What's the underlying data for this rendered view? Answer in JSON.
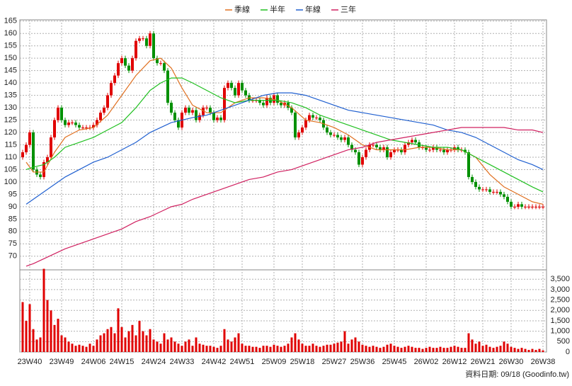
{
  "chart_data": {
    "type": "candlestick",
    "categories": [
      null,
      null,
      "23W40",
      null,
      null,
      null,
      null,
      null,
      null,
      null,
      null,
      "23W49",
      null,
      null,
      null,
      null,
      null,
      null,
      null,
      null,
      "24W06",
      null,
      null,
      null,
      null,
      null,
      null,
      null,
      "24W15",
      null,
      null,
      null,
      null,
      null,
      null,
      null,
      null,
      "24W24",
      null,
      null,
      null,
      null,
      null,
      null,
      null,
      "24W33",
      null,
      null,
      null,
      null,
      null,
      null,
      null,
      null,
      "24W42",
      null,
      null,
      null,
      null,
      null,
      null,
      null,
      "24W51",
      null,
      null,
      null,
      null,
      null,
      null,
      null,
      null,
      "25W09",
      null,
      null,
      null,
      null,
      null,
      null,
      null,
      "25W18",
      null,
      null,
      null,
      null,
      null,
      null,
      null,
      null,
      "25W27",
      null,
      null,
      null,
      null,
      null,
      null,
      null,
      "25W36",
      null,
      null,
      null,
      null,
      null,
      null,
      null,
      null,
      "25W45",
      null,
      null,
      null,
      null,
      null,
      null,
      null,
      null,
      "26W02",
      null,
      null,
      null,
      null,
      null,
      null,
      null,
      "26W12",
      null,
      null,
      null,
      null,
      null,
      null,
      null,
      "26W21",
      null,
      null,
      null,
      null,
      null,
      null,
      null,
      "26W30",
      null,
      null,
      null,
      null,
      null,
      null,
      null,
      null,
      "26W38"
    ],
    "open": [
      110,
      112,
      115,
      120,
      105,
      103,
      102,
      108,
      110,
      118,
      125,
      130,
      125,
      123,
      124,
      124,
      123,
      122,
      122,
      122,
      122,
      123,
      125,
      128,
      130,
      135,
      140,
      143,
      148,
      150,
      147,
      145,
      150,
      157,
      158,
      158,
      155,
      160,
      150,
      148,
      148,
      145,
      132,
      128,
      125,
      122,
      128,
      130,
      128,
      129,
      125,
      127,
      130,
      130,
      128,
      125,
      126,
      125,
      138,
      140,
      138,
      135,
      140,
      137,
      135,
      133,
      133,
      133,
      132,
      131,
      134,
      132,
      135,
      132,
      131,
      132,
      130,
      128,
      118,
      120,
      122,
      125,
      127,
      126,
      126,
      125,
      122,
      120,
      119,
      119,
      118,
      117,
      118,
      115,
      113,
      112,
      107,
      110,
      113,
      115,
      115,
      114,
      113,
      114,
      110,
      112,
      113,
      113,
      112,
      115,
      116,
      117,
      116,
      114,
      114,
      113,
      113,
      114,
      113,
      113,
      112,
      113,
      113,
      114,
      113,
      113,
      112,
      102,
      100,
      98,
      97,
      97,
      97,
      96,
      96,
      96,
      95,
      94,
      92,
      90,
      90,
      91,
      90,
      90,
      90,
      90,
      90,
      90
    ],
    "high": [
      113,
      116,
      121,
      121,
      106,
      104,
      109,
      111,
      119,
      126,
      131,
      131,
      126,
      125,
      125,
      125,
      124,
      123,
      123,
      123,
      124,
      126,
      129,
      131,
      136,
      141,
      144,
      149,
      151,
      151,
      148,
      151,
      158,
      159,
      159,
      159,
      161,
      161,
      151,
      149,
      149,
      146,
      133,
      129,
      126,
      129,
      131,
      131,
      130,
      130,
      128,
      131,
      131,
      131,
      129,
      127,
      127,
      139,
      141,
      141,
      139,
      141,
      141,
      138,
      136,
      134,
      134,
      134,
      133,
      135,
      135,
      136,
      136,
      133,
      133,
      133,
      131,
      129,
      121,
      123,
      126,
      128,
      128,
      127,
      127,
      126,
      123,
      121,
      120,
      120,
      119,
      119,
      119,
      116,
      114,
      113,
      111,
      114,
      116,
      116,
      116,
      115,
      115,
      115,
      113,
      114,
      114,
      114,
      116,
      117,
      118,
      118,
      117,
      115,
      115,
      114,
      115,
      115,
      114,
      114,
      114,
      114,
      115,
      115,
      114,
      114,
      113,
      103,
      101,
      99,
      98,
      98,
      98,
      97,
      97,
      97,
      96,
      95,
      93,
      91,
      92,
      92,
      91,
      91,
      91,
      91,
      91,
      91
    ],
    "low": [
      109,
      111,
      114,
      104,
      102,
      101,
      101,
      107,
      109,
      117,
      124,
      124,
      122,
      122,
      123,
      122,
      121,
      121,
      121,
      121,
      121,
      122,
      124,
      127,
      129,
      134,
      139,
      142,
      147,
      146,
      144,
      144,
      149,
      156,
      157,
      154,
      154,
      149,
      147,
      147,
      144,
      131,
      127,
      124,
      121,
      121,
      127,
      127,
      127,
      124,
      124,
      126,
      129,
      127,
      124,
      124,
      124,
      124,
      137,
      137,
      134,
      134,
      136,
      134,
      132,
      132,
      132,
      131,
      130,
      130,
      131,
      131,
      131,
      130,
      130,
      129,
      127,
      117,
      117,
      119,
      121,
      124,
      125,
      125,
      124,
      121,
      119,
      118,
      118,
      117,
      116,
      116,
      114,
      112,
      111,
      106,
      106,
      109,
      112,
      114,
      113,
      112,
      112,
      109,
      109,
      111,
      112,
      111,
      111,
      114,
      115,
      115,
      113,
      113,
      112,
      112,
      112,
      112,
      112,
      111,
      111,
      112,
      112,
      112,
      112,
      111,
      101,
      99,
      97,
      96,
      96,
      96,
      95,
      95,
      95,
      94,
      93,
      91,
      89,
      89,
      89,
      89,
      89,
      89,
      89,
      89,
      89,
      89
    ],
    "close": [
      112,
      115,
      120,
      105,
      103,
      102,
      108,
      110,
      118,
      125,
      130,
      125,
      123,
      124,
      124,
      123,
      122,
      122,
      122,
      122,
      123,
      125,
      128,
      130,
      135,
      140,
      143,
      148,
      150,
      147,
      145,
      150,
      157,
      158,
      158,
      155,
      160,
      150,
      148,
      148,
      145,
      132,
      128,
      125,
      122,
      128,
      130,
      128,
      129,
      125,
      127,
      130,
      130,
      128,
      125,
      126,
      125,
      138,
      140,
      138,
      135,
      140,
      137,
      135,
      133,
      133,
      133,
      132,
      131,
      134,
      132,
      135,
      132,
      131,
      132,
      130,
      128,
      118,
      120,
      122,
      125,
      127,
      126,
      126,
      125,
      122,
      120,
      119,
      119,
      118,
      117,
      118,
      115,
      113,
      112,
      107,
      110,
      113,
      115,
      115,
      114,
      113,
      114,
      110,
      112,
      113,
      113,
      112,
      115,
      116,
      117,
      116,
      114,
      114,
      113,
      113,
      114,
      113,
      113,
      112,
      113,
      113,
      114,
      113,
      113,
      112,
      102,
      100,
      98,
      97,
      97,
      97,
      96,
      96,
      96,
      95,
      94,
      92,
      90,
      90,
      91,
      90,
      90,
      90,
      90,
      90,
      90,
      90
    ],
    "up_color": "#e00000",
    "down_color": "#009000",
    "ylim": [
      64.5,
      165.5
    ],
    "yticks": [
      70,
      75,
      80,
      85,
      90,
      95,
      100,
      105,
      110,
      115,
      120,
      125,
      130,
      135,
      140,
      145,
      150,
      155,
      160,
      165
    ],
    "grid": true,
    "legend": "top",
    "series": [
      {
        "name": "季線",
        "color": "#e07020",
        "x": [
          1,
          3,
          6,
          9,
          12,
          16,
          20,
          24,
          28,
          32,
          36,
          39,
          42,
          45,
          48,
          52,
          56,
          60,
          64,
          68,
          72,
          76,
          80,
          84,
          88,
          92,
          96,
          100,
          104,
          108,
          112,
          116,
          120,
          124,
          128,
          132,
          136,
          140,
          144,
          147
        ],
        "values": [
          108,
          104,
          104,
          112,
          118,
          121,
          122,
          127,
          135,
          143,
          149,
          150,
          146,
          138,
          131,
          128,
          128,
          132,
          134,
          134,
          133,
          130,
          125,
          124,
          122,
          119,
          115,
          113,
          113,
          113,
          114,
          114,
          113,
          113,
          110,
          103,
          98,
          95,
          92,
          91
        ]
      },
      {
        "name": "半年",
        "color": "#20c020",
        "x": [
          1,
          3,
          6,
          9,
          12,
          16,
          20,
          24,
          28,
          32,
          36,
          39,
          42,
          45,
          48,
          52,
          56,
          60,
          64,
          68,
          72,
          76,
          80,
          84,
          88,
          92,
          96,
          100,
          104,
          108,
          112,
          116,
          120,
          124,
          128,
          132,
          136,
          140,
          144,
          147
        ],
        "values": [
          105,
          106,
          107,
          110,
          114,
          116,
          118,
          121,
          124,
          130,
          137,
          140,
          142,
          142,
          140,
          137,
          134,
          132,
          133,
          133,
          133,
          132,
          130,
          127,
          125,
          123,
          121,
          119,
          117,
          116,
          115,
          114,
          114,
          113,
          110,
          107,
          104,
          101,
          98,
          96
        ]
      },
      {
        "name": "年線",
        "color": "#2060d0",
        "x": [
          1,
          3,
          6,
          9,
          12,
          16,
          20,
          24,
          28,
          32,
          36,
          39,
          42,
          45,
          48,
          52,
          56,
          60,
          64,
          68,
          72,
          76,
          80,
          84,
          88,
          92,
          96,
          100,
          104,
          108,
          112,
          116,
          120,
          124,
          128,
          132,
          136,
          140,
          144,
          147
        ],
        "values": [
          91,
          93,
          96,
          99,
          102,
          105,
          108,
          110,
          113,
          116,
          120,
          122,
          124,
          125,
          126,
          127,
          129,
          131,
          133,
          135,
          136,
          136,
          135,
          133,
          131,
          129,
          128,
          127,
          126,
          125,
          124,
          123,
          121,
          120,
          118,
          115,
          112,
          109,
          107,
          105
        ]
      },
      {
        "name": "三年",
        "color": "#d02060",
        "x": [
          1,
          3,
          6,
          9,
          12,
          16,
          20,
          24,
          28,
          32,
          36,
          39,
          42,
          45,
          48,
          52,
          56,
          60,
          64,
          68,
          72,
          76,
          80,
          84,
          88,
          92,
          96,
          100,
          104,
          108,
          112,
          116,
          120,
          124,
          128,
          132,
          136,
          140,
          144,
          147
        ],
        "values": [
          66,
          67,
          69,
          71,
          73,
          75,
          77,
          79,
          81,
          84,
          86,
          88,
          90,
          91,
          93,
          95,
          97,
          99,
          101,
          102,
          104,
          105,
          107,
          109,
          111,
          113,
          114,
          116,
          117,
          118,
          119,
          120,
          121,
          122,
          122,
          122,
          122,
          121,
          121,
          120
        ]
      }
    ],
    "volume": {
      "color": "#e00000",
      "ylim": [
        0,
        3950
      ],
      "yticks": [
        0,
        500,
        {
          "value": 1000,
          "label": "1,000"
        },
        {
          "value": 1500,
          "label": "1,500"
        },
        {
          "value": 2000,
          "label": "2,000"
        },
        {
          "value": 2500,
          "label": "2,500"
        },
        {
          "value": 3000,
          "label": "3,000"
        },
        {
          "value": 3500,
          "label": "3,500"
        }
      ],
      "values": [
        2400,
        1500,
        2300,
        1100,
        600,
        700,
        4000,
        2500,
        2000,
        1300,
        1600,
        800,
        700,
        500,
        400,
        300,
        350,
        300,
        250,
        400,
        300,
        600,
        800,
        900,
        1100,
        1200,
        900,
        2100,
        1200,
        700,
        1000,
        1300,
        800,
        1500,
        1000,
        800,
        1100,
        600,
        500,
        400,
        900,
        600,
        700,
        500,
        400,
        300,
        500,
        600,
        300,
        700,
        400,
        350,
        300,
        300,
        250,
        200,
        300,
        1100,
        600,
        500,
        700,
        900,
        400,
        300,
        300,
        250,
        250,
        200,
        300,
        300,
        250,
        350,
        300,
        250,
        300,
        400,
        700,
        900,
        600,
        400,
        300,
        300,
        400,
        300,
        250,
        300,
        350,
        350,
        400,
        450,
        500,
        1000,
        400,
        600,
        700,
        500,
        350,
        300,
        250,
        300,
        250,
        200,
        250,
        350,
        400,
        300,
        250,
        200,
        250,
        300,
        250,
        200,
        200,
        150,
        200,
        250,
        200,
        200,
        250,
        200,
        200,
        250,
        300,
        250,
        200,
        200,
        900,
        600,
        400,
        500,
        300,
        350,
        250,
        200,
        250,
        300,
        500,
        400,
        250,
        200,
        150,
        200,
        150,
        100,
        150,
        100,
        150,
        80
      ]
    },
    "source": "資料日期: 09/18  (Goodinfo.tw)"
  }
}
